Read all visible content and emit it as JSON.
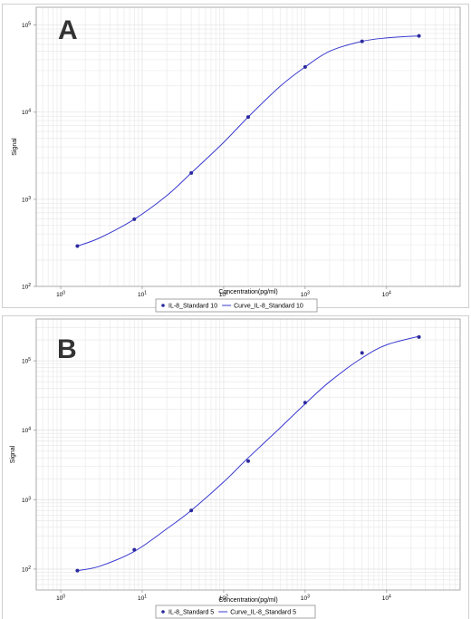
{
  "panels": [
    {
      "letter": "A"
    },
    {
      "letter": "B"
    }
  ],
  "colors": {
    "series": "#2b2b9e",
    "curve": "#3a3ad0",
    "grid": "#e6e6e6",
    "axis": "#9a9a9a",
    "text": "#000000"
  },
  "chart_data": [
    {
      "type": "scatter",
      "xlabel": "Concentration(pg/ml)",
      "ylabel": "Signal",
      "x_scale": "log",
      "y_scale": "log",
      "xlim": [
        0.5,
        80000
      ],
      "ylim": [
        100,
        160000
      ],
      "x_ticks": [
        1,
        10,
        100,
        1000,
        10000
      ],
      "x_tick_labels": [
        "10^0",
        "10^1",
        "10^2",
        "10^3",
        "10^4"
      ],
      "y_ticks": [
        100,
        1000,
        10000,
        100000
      ],
      "y_tick_labels": [
        "10^2",
        "10^3",
        "10^4",
        "10^5"
      ],
      "grid": true,
      "legend_position": "bottom-center",
      "series": [
        {
          "name": "IL-8_Standard 10",
          "kind": "points",
          "x": [
            1.6,
            8,
            40,
            200,
            1000,
            5000,
            25000
          ],
          "y": [
            290,
            590,
            2000,
            8800,
            33000,
            65000,
            75000
          ]
        },
        {
          "name": "Curve_IL-8_Standard 10",
          "kind": "curve",
          "x": [
            1.6,
            3,
            8,
            20,
            40,
            100,
            200,
            500,
            1000,
            2000,
            5000,
            10000,
            25000
          ],
          "y": [
            290,
            360,
            590,
            1100,
            2000,
            4500,
            8800,
            20000,
            33000,
            50000,
            65000,
            71000,
            75000
          ]
        }
      ]
    },
    {
      "type": "scatter",
      "xlabel": "Concentration(pg/ml)",
      "ylabel": "Signal",
      "x_scale": "log",
      "y_scale": "log",
      "xlim": [
        0.5,
        80000
      ],
      "ylim": [
        50,
        400000
      ],
      "x_ticks": [
        1,
        10,
        100,
        1000,
        10000
      ],
      "x_tick_labels": [
        "10^0",
        "10^1",
        "10^2",
        "10^3",
        "10^4"
      ],
      "y_ticks": [
        100,
        1000,
        10000,
        100000
      ],
      "y_tick_labels": [
        "10^2",
        "10^3",
        "10^4",
        "10^5"
      ],
      "grid": true,
      "legend_position": "bottom-center",
      "series": [
        {
          "name": "IL-8_Standard 5",
          "kind": "points",
          "x": [
            1.6,
            8,
            40,
            200,
            1000,
            5000,
            25000
          ],
          "y": [
            95,
            190,
            700,
            3600,
            25000,
            130000,
            220000
          ]
        },
        {
          "name": "Curve_IL-8_Standard 5",
          "kind": "curve",
          "x": [
            1.6,
            3,
            8,
            20,
            40,
            100,
            200,
            500,
            1000,
            2000,
            5000,
            10000,
            25000
          ],
          "y": [
            95,
            110,
            180,
            380,
            700,
            1800,
            4000,
            11000,
            24000,
            50000,
            110000,
            170000,
            225000
          ]
        }
      ]
    }
  ]
}
